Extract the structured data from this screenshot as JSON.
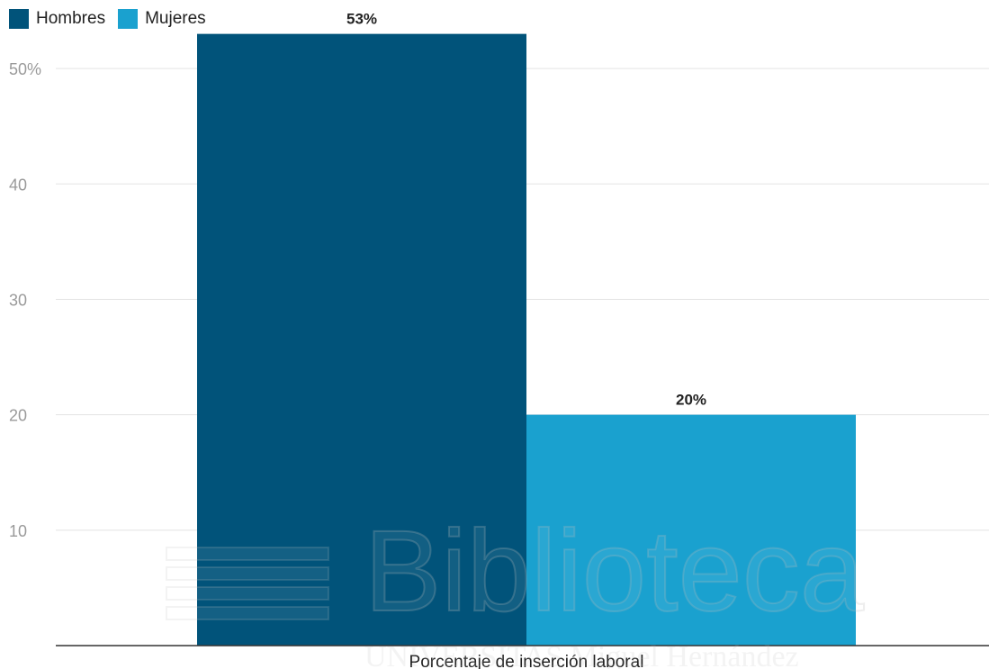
{
  "legend": [
    {
      "label": "Hombres",
      "color": "#01537a"
    },
    {
      "label": "Mujeres",
      "color": "#1aa1cf"
    }
  ],
  "watermark": {
    "text": "Biblioteca",
    "subtext": "UNIVERSITAS Miguel Hernández"
  },
  "chart_data": {
    "type": "bar",
    "categories": [
      "Porcentaje de inserción laboral"
    ],
    "series": [
      {
        "name": "Hombres",
        "values": [
          53
        ],
        "color": "#01537a",
        "data_label": "53%"
      },
      {
        "name": "Mujeres",
        "values": [
          20
        ],
        "color": "#1aa1cf",
        "data_label": "20%"
      }
    ],
    "xlabel": "Porcentaje de inserción laboral",
    "ylabel": "",
    "ylim": [
      0,
      55
    ],
    "yticks": [
      {
        "value": 10,
        "label": "10"
      },
      {
        "value": 20,
        "label": "20"
      },
      {
        "value": 30,
        "label": "30"
      },
      {
        "value": 40,
        "label": "40"
      },
      {
        "value": 50,
        "label": "50%"
      }
    ],
    "grid": true,
    "legend_position": "top-left"
  }
}
